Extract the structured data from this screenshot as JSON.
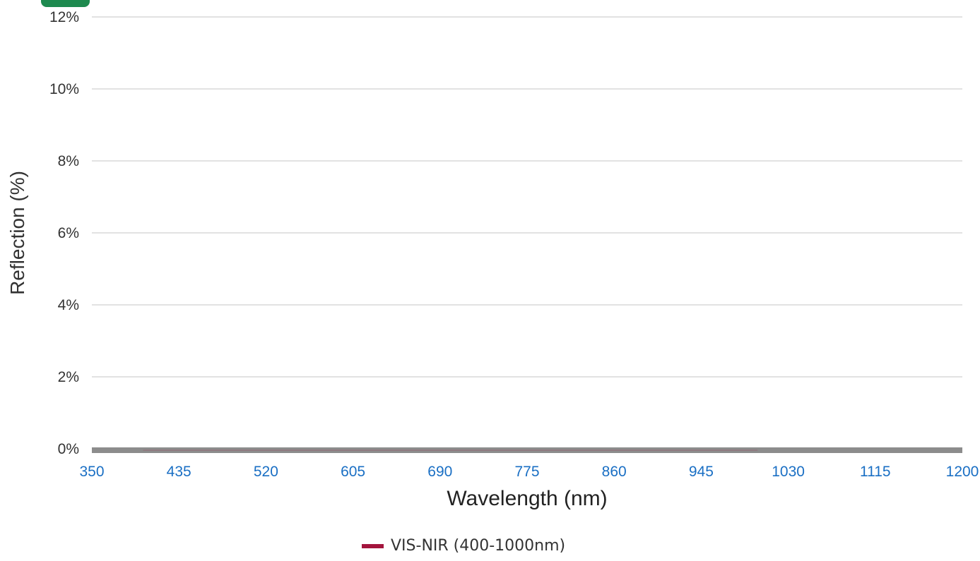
{
  "chart_data": {
    "type": "line",
    "xlabel": "Wavelength (nm)",
    "ylabel": "Reflection (%)",
    "xlim": [
      350,
      1200
    ],
    "ylim": [
      0,
      12
    ],
    "x_ticks": [
      "350",
      "435",
      "520",
      "605",
      "690",
      "775",
      "860",
      "945",
      "1030",
      "1115",
      "1200"
    ],
    "y_ticks": [
      "0%",
      "2%",
      "4%",
      "6%",
      "8%",
      "10%",
      "12%"
    ],
    "grid": true,
    "legend_position": "bottom",
    "series": [
      {
        "name": "VIS-NIR (400-1000nm)",
        "color": "#a3153d",
        "x": [
          400,
          1000
        ],
        "y": [
          0,
          0
        ]
      }
    ],
    "baseline_band": {
      "x": [
        350,
        1200
      ],
      "y": [
        0,
        0
      ],
      "color": "#8c8c8c"
    },
    "colors": {
      "x_tick": "#1a6fc4",
      "y_tick": "#333333",
      "grid": "#d9d9d9"
    }
  }
}
